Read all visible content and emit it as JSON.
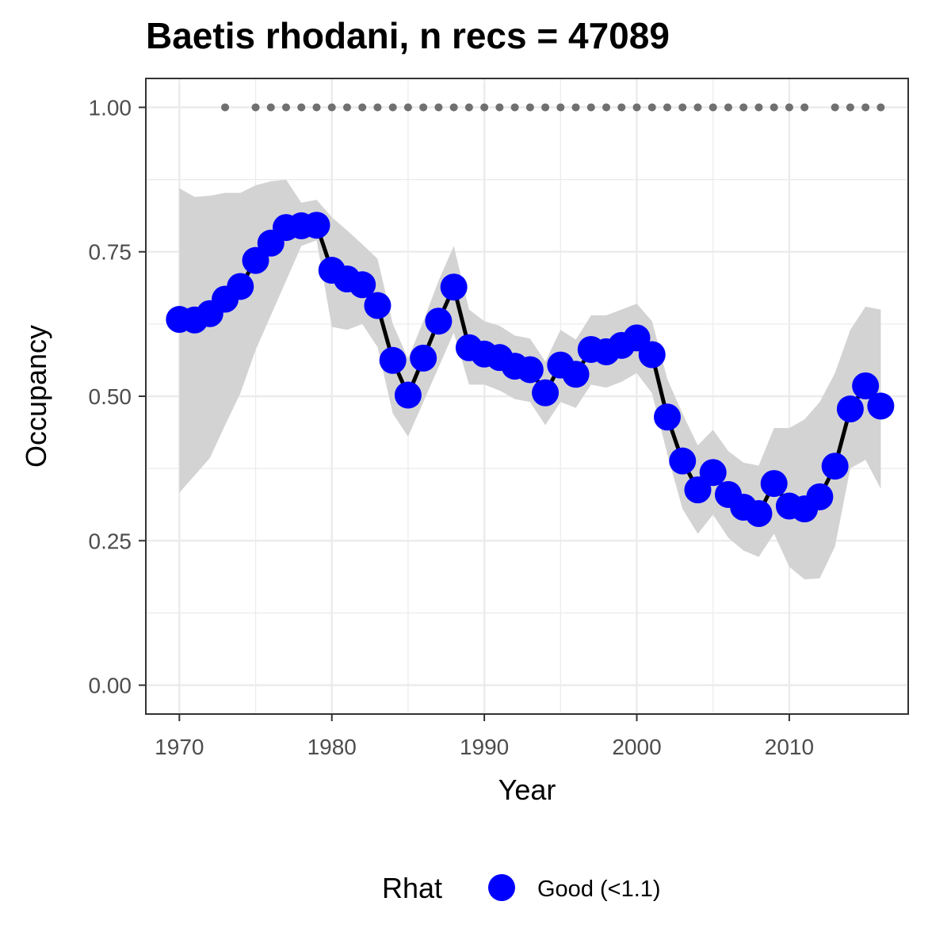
{
  "chart_data": {
    "type": "line",
    "title": "Baetis rhodani, n recs = 47089",
    "xlabel": "Year",
    "ylabel": "Occupancy",
    "xlim": [
      1967.8,
      2017.8
    ],
    "ylim": [
      -0.05,
      1.05
    ],
    "x_ticks": [
      1970,
      1980,
      1990,
      2000,
      2010
    ],
    "x_tick_labels": [
      "1970",
      "1980",
      "1990",
      "2000",
      "2010"
    ],
    "y_ticks": [
      0,
      0.25,
      0.5,
      0.75,
      1.0
    ],
    "y_tick_labels": [
      "0.00",
      "0.25",
      "0.50",
      "0.75",
      "1.00"
    ],
    "grid": true,
    "legend": {
      "title": "Rhat",
      "placement": "bottom",
      "entries": [
        {
          "label": "Good (<1.1)",
          "color": "#0000ff"
        }
      ]
    },
    "colors": {
      "points": "#0000ff",
      "line": "#000000",
      "ribbon": "#d3d3d3",
      "rug": "#707070",
      "panel_border": "#333333",
      "grid": "#ebebeb"
    },
    "x": [
      1970,
      1971,
      1972,
      1973,
      1974,
      1975,
      1976,
      1977,
      1978,
      1979,
      1980,
      1981,
      1982,
      1983,
      1984,
      1985,
      1986,
      1987,
      1988,
      1989,
      1990,
      1991,
      1992,
      1993,
      1994,
      1995,
      1996,
      1997,
      1998,
      1999,
      2000,
      2001,
      2002,
      2003,
      2004,
      2005,
      2006,
      2007,
      2008,
      2009,
      2010,
      2011,
      2012,
      2013,
      2014,
      2015,
      2016
    ],
    "series": [
      {
        "values": [
          0.633,
          0.632,
          0.643,
          0.668,
          0.69,
          0.735,
          0.765,
          0.792,
          0.795,
          0.796,
          0.718,
          0.703,
          0.693,
          0.657,
          0.562,
          0.502,
          0.566,
          0.63,
          0.689,
          0.584,
          0.573,
          0.567,
          0.552,
          0.546,
          0.506,
          0.554,
          0.538,
          0.581,
          0.577,
          0.588,
          0.601,
          0.572,
          0.464,
          0.388,
          0.338,
          0.368,
          0.33,
          0.308,
          0.297,
          0.349,
          0.31,
          0.305,
          0.326,
          0.379,
          0.478,
          0.518,
          0.483
        ],
        "lower": [
          0.333,
          0.363,
          0.393,
          0.45,
          0.505,
          0.58,
          0.64,
          0.7,
          0.76,
          0.77,
          0.62,
          0.615,
          0.625,
          0.585,
          0.47,
          0.43,
          0.49,
          0.55,
          0.61,
          0.52,
          0.52,
          0.51,
          0.495,
          0.49,
          0.45,
          0.49,
          0.48,
          0.52,
          0.515,
          0.525,
          0.54,
          0.505,
          0.4,
          0.305,
          0.262,
          0.295,
          0.255,
          0.233,
          0.222,
          0.262,
          0.205,
          0.183,
          0.185,
          0.24,
          0.375,
          0.39,
          0.34
        ],
        "upper": [
          0.86,
          0.845,
          0.847,
          0.852,
          0.852,
          0.865,
          0.872,
          0.875,
          0.835,
          0.84,
          0.81,
          0.787,
          0.763,
          0.738,
          0.625,
          0.565,
          0.63,
          0.7,
          0.76,
          0.65,
          0.63,
          0.622,
          0.605,
          0.6,
          0.56,
          0.615,
          0.598,
          0.64,
          0.64,
          0.65,
          0.66,
          0.63,
          0.53,
          0.47,
          0.415,
          0.442,
          0.405,
          0.385,
          0.38,
          0.445,
          0.445,
          0.46,
          0.49,
          0.54,
          0.615,
          0.655,
          0.65
        ]
      }
    ],
    "rug_years": [
      1973,
      1975,
      1976,
      1977,
      1978,
      1979,
      1980,
      1981,
      1982,
      1983,
      1984,
      1985,
      1986,
      1987,
      1988,
      1989,
      1990,
      1991,
      1992,
      1993,
      1994,
      1995,
      1996,
      1997,
      1998,
      1999,
      2000,
      2001,
      2002,
      2003,
      2004,
      2005,
      2006,
      2007,
      2008,
      2009,
      2010,
      2011,
      2013,
      2014,
      2015,
      2016
    ],
    "rug_y": 1.0
  }
}
